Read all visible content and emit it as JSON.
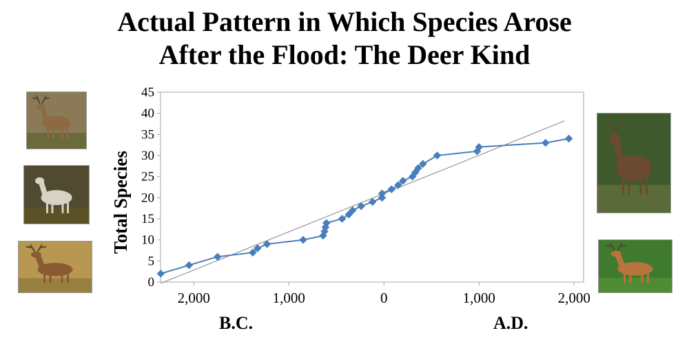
{
  "title_line1": "Actual Pattern in Which Species Arose",
  "title_line2": "After the Flood: The Deer Kind",
  "era_left": "B.C.",
  "era_right": "A.D.",
  "colors": {
    "series": "#4a7ebb",
    "trend": "#808080",
    "axis": "#a6a6a6"
  },
  "photos": [
    {
      "name": "white-tailed-deer-photo",
      "bg": "#8a7a58",
      "body": "#8b6a44",
      "ground": "#6b6a3a"
    },
    {
      "name": "reindeer-photo",
      "bg": "#4f4a30",
      "body": "#d8d2c4",
      "ground": "#5a5226"
    },
    {
      "name": "muntjac-photo",
      "bg": "#b89850",
      "body": "#8a5a30",
      "ground": "#9a8040"
    },
    {
      "name": "red-deer-photo",
      "bg": "#3e5a2c",
      "body": "#6b4a30",
      "ground": "#5a6a38"
    },
    {
      "name": "sika-deer-photo",
      "bg": "#3f7a2e",
      "body": "#b8743a",
      "ground": "#4f8a34"
    }
  ],
  "chart_data": {
    "type": "scatter",
    "title": "",
    "xlabel": "",
    "ylabel": "Total Species",
    "xlim": [
      -2350,
      2100
    ],
    "ylim": [
      0,
      45
    ],
    "y_ticks": [
      0,
      5,
      10,
      15,
      20,
      25,
      30,
      35,
      40,
      45
    ],
    "x_ticks": [
      {
        "value": -2000,
        "label": "2,000"
      },
      {
        "value": -1000,
        "label": "1,000"
      },
      {
        "value": 0,
        "label": "0"
      },
      {
        "value": 1000,
        "label": "1,000"
      },
      {
        "value": 2000,
        "label": "2,000"
      }
    ],
    "grid": false,
    "legend": "none",
    "series": [
      {
        "marker": "diamond",
        "connected": true,
        "points": [
          [
            -2348,
            2
          ],
          [
            -2050,
            4
          ],
          [
            -1750,
            6
          ],
          [
            -1380,
            7
          ],
          [
            -1330,
            8
          ],
          [
            -1230,
            9
          ],
          [
            -850,
            10
          ],
          [
            -640,
            11
          ],
          [
            -625,
            12
          ],
          [
            -615,
            13
          ],
          [
            -605,
            14
          ],
          [
            -440,
            15
          ],
          [
            -370,
            16
          ],
          [
            -330,
            17
          ],
          [
            -240,
            18
          ],
          [
            -120,
            19
          ],
          [
            -20,
            20
          ],
          [
            -20,
            21
          ],
          [
            80,
            22
          ],
          [
            150,
            23
          ],
          [
            200,
            24
          ],
          [
            300,
            25
          ],
          [
            330,
            26
          ],
          [
            360,
            27
          ],
          [
            410,
            28
          ],
          [
            560,
            30
          ],
          [
            980,
            31
          ],
          [
            1000,
            32
          ],
          [
            1700,
            33
          ],
          [
            1945,
            34
          ]
        ]
      }
    ],
    "trendline": {
      "type": "linear",
      "start": [
        -2348,
        -0.3
      ],
      "end": [
        1900,
        38.2
      ]
    }
  }
}
